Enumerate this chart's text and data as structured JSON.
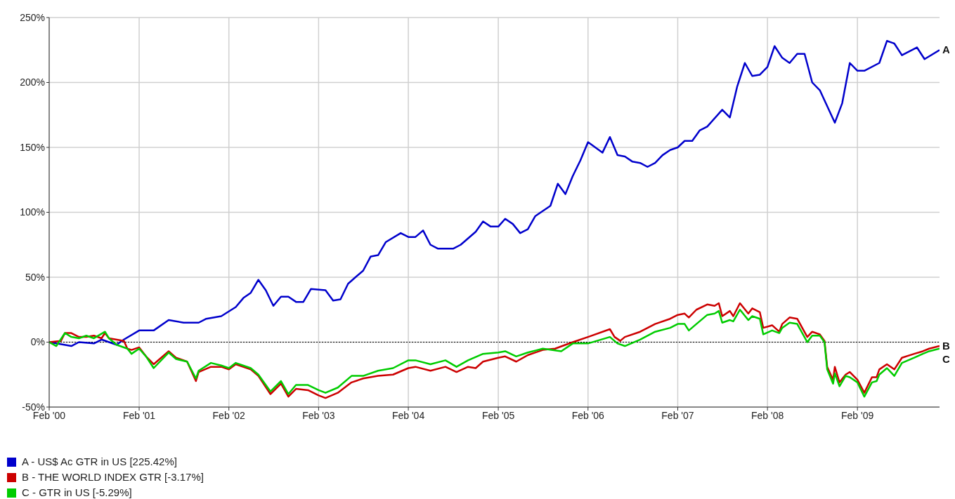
{
  "chart_data": {
    "type": "line",
    "xlim": [
      "2000-02",
      "2010-01"
    ],
    "xticks": [
      {
        "value": "2000-02",
        "label": "Feb '00"
      },
      {
        "value": "2001-02",
        "label": "Feb '01"
      },
      {
        "value": "2002-02",
        "label": "Feb '02"
      },
      {
        "value": "2003-02",
        "label": "Feb '03"
      },
      {
        "value": "2004-02",
        "label": "Feb '04"
      },
      {
        "value": "2005-02",
        "label": "Feb '05"
      },
      {
        "value": "2006-02",
        "label": "Feb '06"
      },
      {
        "value": "2007-02",
        "label": "Feb '07"
      },
      {
        "value": "2008-02",
        "label": "Feb '08"
      },
      {
        "value": "2009-02",
        "label": "Feb '09"
      }
    ],
    "ylim": [
      -50,
      250
    ],
    "yticks": [
      {
        "value": -50,
        "label": "-50%"
      },
      {
        "value": 0,
        "label": "0%"
      },
      {
        "value": 50,
        "label": "50%"
      },
      {
        "value": 100,
        "label": "100%"
      },
      {
        "value": 150,
        "label": "150%"
      },
      {
        "value": 200,
        "label": "200%"
      },
      {
        "value": 250,
        "label": "250%"
      }
    ],
    "grid": true,
    "legend": "bottom",
    "marker": "none",
    "line_style": "solid",
    "ref_lines": [
      {
        "axis": "y",
        "value": 0,
        "color": "#000000",
        "line_style": "dotted"
      }
    ],
    "annotations": [
      {
        "text": "A",
        "x": "2010-01",
        "y": 225
      },
      {
        "text": "B",
        "x": "2010-01",
        "y": -3
      },
      {
        "text": "C",
        "x": "2010-01",
        "y": -5
      }
    ],
    "series": [
      {
        "name": "A - US$ Ac GTR in US [225.42%]",
        "color": "#0000cc",
        "x": [
          "2000-02",
          "2000-05",
          "2000-06",
          "2000-08",
          "2000-09",
          "2000-11",
          "2000-12",
          "2001-02",
          "2001-04",
          "2001-06",
          "2001-08",
          "2001-10",
          "2001-11",
          "2002-01",
          "2002-03",
          "2002-04",
          "2002-05",
          "2002-06",
          "2002-07",
          "2002-08",
          "2002-09",
          "2002-10",
          "2002-11",
          "2002-12",
          "2003-01",
          "2003-03",
          "2003-04",
          "2003-05",
          "2003-06",
          "2003-07",
          "2003-08",
          "2003-09",
          "2003-10",
          "2003-11",
          "2004-01",
          "2004-02",
          "2004-03",
          "2004-04",
          "2004-05",
          "2004-06",
          "2004-08",
          "2004-09",
          "2004-11",
          "2004-12",
          "2005-01",
          "2005-02",
          "2005-03",
          "2005-04",
          "2005-05",
          "2005-06",
          "2005-07",
          "2005-09",
          "2005-10",
          "2005-11",
          "2005-12",
          "2006-01",
          "2006-02",
          "2006-04",
          "2006-05",
          "2006-06",
          "2006-07",
          "2006-08",
          "2006-09",
          "2006-10",
          "2006-11",
          "2006-12",
          "2007-01",
          "2007-02",
          "2007-03",
          "2007-04",
          "2007-05",
          "2007-06",
          "2007-08",
          "2007-09",
          "2007-10",
          "2007-11",
          "2007-12",
          "2008-01",
          "2008-02",
          "2008-03",
          "2008-04",
          "2008-05",
          "2008-06",
          "2008-07",
          "2008-08",
          "2008-09",
          "2008-11",
          "2008-12",
          "2009-01",
          "2009-02",
          "2009-03",
          "2009-05",
          "2009-06",
          "2009-07",
          "2009-08",
          "2009-10",
          "2009-11",
          "2010-01"
        ],
        "values": [
          0,
          -3,
          0,
          -1,
          2,
          -2,
          2,
          9,
          9,
          17,
          15,
          15,
          18,
          20,
          27,
          34,
          38,
          48,
          40,
          28,
          35,
          35,
          31,
          31,
          41,
          40,
          32,
          33,
          45,
          50,
          55,
          66,
          67,
          77,
          84,
          81,
          81,
          86,
          75,
          72,
          72,
          75,
          85,
          93,
          89,
          89,
          95,
          91,
          84,
          87,
          97,
          105,
          122,
          114,
          128,
          140,
          154,
          146,
          158,
          144,
          143,
          139,
          138,
          135,
          138,
          144,
          148,
          150,
          155,
          155,
          163,
          166,
          179,
          173,
          197,
          215,
          205,
          206,
          212,
          228,
          219,
          215,
          222,
          222,
          200,
          194,
          169,
          184,
          215,
          209,
          209,
          215,
          232,
          230,
          221,
          227,
          218,
          225
        ]
      },
      {
        "name": "B - THE WORLD INDEX GTR [-3.17%]",
        "color": "#cc0000",
        "x": [
          "2000-02",
          "2000-03-20",
          "2000-04-05",
          "2000-05",
          "2000-06",
          "2000-07",
          "2000-08",
          "2000-09",
          "2000-09-15",
          "2000-10",
          "2000-12",
          "2000-12-15",
          "2001-01",
          "2001-02",
          "2001-03",
          "2001-04",
          "2001-06",
          "2001-07",
          "2001-08-15",
          "2001-09-20",
          "2001-10",
          "2001-11-20",
          "2002-01",
          "2002-02",
          "2002-03",
          "2002-05",
          "2002-06",
          "2002-07-20",
          "2002-09",
          "2002-10",
          "2002-11",
          "2002-12-20",
          "2003-02",
          "2003-03",
          "2003-04-20",
          "2003-06-15",
          "2003-08",
          "2003-10",
          "2003-12",
          "2004-02",
          "2004-03",
          "2004-05",
          "2004-07",
          "2004-08-15",
          "2004-10",
          "2004-11",
          "2004-12",
          "2005-02",
          "2005-03",
          "2005-04-15",
          "2005-06",
          "2005-08",
          "2005-09-20",
          "2005-12",
          "2006-02",
          "2006-05",
          "2006-05-20",
          "2006-06-12",
          "2006-07",
          "2006-09",
          "2006-11",
          "2007-01",
          "2007-02",
          "2007-03",
          "2007-03-18",
          "2007-04-18",
          "2007-06",
          "2007-07",
          "2007-07-18",
          "2007-08",
          "2007-09",
          "2007-09-15",
          "2007-10-12",
          "2007-11-15",
          "2007-12",
          "2008-01",
          "2008-01-15",
          "2008-02-20",
          "2008-03-20",
          "2008-04",
          "2008-05",
          "2008-06",
          "2008-07-12",
          "2008-08",
          "2008-09",
          "2008-09-20",
          "2008-10",
          "2008-10-25",
          "2008-11",
          "2008-11-20",
          "2008-12-15",
          "2009-01",
          "2009-02",
          "2009-03",
          "2009-04",
          "2009-04-20",
          "2009-05",
          "2009-06",
          "2009-07",
          "2009-08",
          "2009-09-20",
          "2009-10-25",
          "2009-11-20",
          "2010-01"
        ],
        "values": [
          0,
          1,
          7,
          7,
          4,
          4,
          5,
          3,
          7,
          3,
          1,
          -5,
          -6,
          -4,
          -11,
          -17,
          -7,
          -12,
          -15,
          -30,
          -23,
          -19,
          -19,
          -21,
          -17,
          -21,
          -26,
          -40,
          -32,
          -42,
          -36,
          -37,
          -41,
          -43,
          -39,
          -31,
          -28,
          -26,
          -25,
          -20,
          -19,
          -22,
          -19,
          -23,
          -19,
          -20,
          -15,
          -12,
          -11,
          -15,
          -10,
          -6,
          -5,
          0,
          4,
          10,
          4,
          1,
          4,
          8,
          14,
          18,
          21,
          22,
          19,
          25,
          29,
          28,
          30,
          20,
          24,
          20,
          30,
          22,
          26,
          23,
          11,
          13,
          8,
          14,
          19,
          18,
          4,
          8,
          6,
          1,
          -19,
          -29,
          -19,
          -31,
          -25,
          -23,
          -29,
          -39,
          -27,
          -27,
          -21,
          -17,
          -21,
          -12,
          -9,
          -7,
          -5,
          -3
        ]
      },
      {
        "name": "C - GTR in US [-5.29%]",
        "color": "#00cc00",
        "x": [
          "2000-02",
          "2000-03",
          "2000-04-05",
          "2000-05",
          "2000-06",
          "2000-07",
          "2000-08",
          "2000-09-15",
          "2000-10",
          "2000-11",
          "2000-12-15",
          "2001-01",
          "2001-02",
          "2001-03",
          "2001-04",
          "2001-06",
          "2001-07",
          "2001-08-15",
          "2001-09-20",
          "2001-10",
          "2001-11-20",
          "2002-01",
          "2002-02",
          "2002-03",
          "2002-05",
          "2002-06",
          "2002-07-20",
          "2002-09",
          "2002-10",
          "2002-11",
          "2002-12-20",
          "2003-02",
          "2003-03",
          "2003-04-20",
          "2003-06-15",
          "2003-08",
          "2003-10",
          "2003-12",
          "2004-02",
          "2004-03",
          "2004-05",
          "2004-07",
          "2004-08-15",
          "2004-10",
          "2004-12",
          "2005-02",
          "2005-03",
          "2005-04-15",
          "2005-06",
          "2005-08",
          "2005-10-15",
          "2005-12",
          "2006-02",
          "2006-05",
          "2006-06",
          "2006-07",
          "2006-09",
          "2006-11",
          "2007-01",
          "2007-02",
          "2007-03",
          "2007-03-18",
          "2007-04-18",
          "2007-06",
          "2007-07",
          "2007-07-18",
          "2007-08",
          "2007-09",
          "2007-09-15",
          "2007-10-12",
          "2007-11-15",
          "2007-12",
          "2008-01",
          "2008-01-15",
          "2008-02-20",
          "2008-03-20",
          "2008-04",
          "2008-05",
          "2008-06",
          "2008-07-12",
          "2008-08",
          "2008-09",
          "2008-09-20",
          "2008-10",
          "2008-10-25",
          "2008-11",
          "2008-11-20",
          "2008-12-15",
          "2009-01",
          "2009-02",
          "2009-03",
          "2009-04",
          "2009-04-20",
          "2009-05",
          "2009-06",
          "2009-07",
          "2009-08",
          "2009-09-20",
          "2009-10-25",
          "2009-11-20",
          "2010-01"
        ],
        "values": [
          0,
          -3,
          7,
          4,
          3,
          5,
          3,
          8,
          3,
          -2,
          -5,
          -9,
          -5,
          -11,
          -20,
          -8,
          -13,
          -15,
          -28,
          -22,
          -16,
          -18,
          -20,
          -16,
          -20,
          -25,
          -38,
          -30,
          -40,
          -33,
          -33,
          -37,
          -39,
          -35,
          -26,
          -26,
          -22,
          -20,
          -14,
          -14,
          -17,
          -14,
          -19,
          -14,
          -9,
          -8,
          -7,
          -11,
          -8,
          -5,
          -7,
          -1,
          -1,
          4,
          -1,
          -3,
          2,
          8,
          11,
          14,
          14,
          9,
          14,
          21,
          22,
          24,
          15,
          17,
          16,
          25,
          17,
          20,
          18,
          6,
          9,
          7,
          11,
          15,
          14,
          0,
          5,
          5,
          0,
          -21,
          -32,
          -24,
          -34,
          -26,
          -27,
          -31,
          -42,
          -31,
          -30,
          -25,
          -20,
          -26,
          -16,
          -12,
          -9,
          -7,
          -5
        ]
      }
    ]
  }
}
